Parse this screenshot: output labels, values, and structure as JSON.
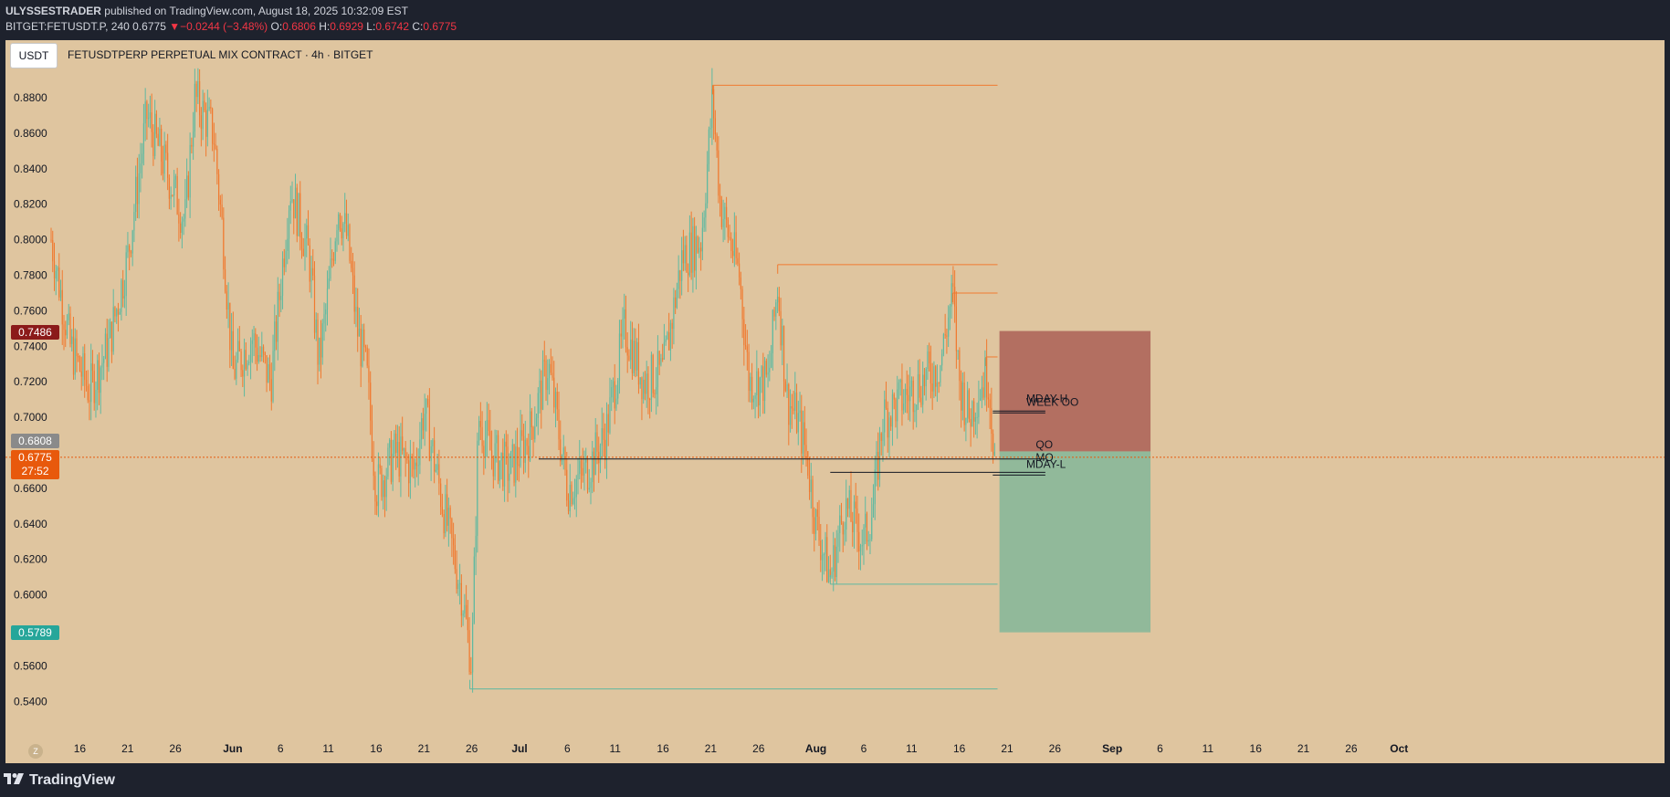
{
  "header": {
    "author": "ULYSSESTRADER",
    "published": "published on TradingView.com, August 18, 2025 10:32:09 EST",
    "symbol": "BITGET:FETUSDT.P, 240",
    "last": "0.6775",
    "change_arrow": "▼",
    "change": "−0.0244 (−3.48%)",
    "o_label": "O:",
    "o": "0.6806",
    "h_label": "H:",
    "h": "0.6929",
    "l_label": "L:",
    "l": "0.6742",
    "c_label": "C:",
    "c": "0.6775"
  },
  "chart_header": {
    "currency_button": "USDT",
    "title": "FETUSDTPERP PERPETUAL MIX CONTRACT · 4h · BITGET"
  },
  "badges": {
    "stop": "0.7486",
    "prev": "0.6808",
    "current_price": "0.6775",
    "countdown": "27:52",
    "target": "0.5789"
  },
  "footer": {
    "logo_text": "TradingView",
    "zoom_label": "Z"
  },
  "colors": {
    "background": "#dfc59f",
    "frame": "#1e222d",
    "up_candle": "#5fb9a0",
    "down_candle": "#f07a30",
    "stop_zone": "#b06a5e",
    "target_zone": "#8cb89a",
    "stop_badge": "#8b1a1a",
    "current_badge": "#e8590c",
    "prev_badge": "#8a8a8a",
    "target_badge": "#26a69a"
  },
  "chart_data": {
    "type": "candlestick",
    "title": "FETUSDTPERP PERPETUAL MIX CONTRACT · 4h · BITGET",
    "timeframe": "4h",
    "x_range": [
      "2025-05-13",
      "2025-10-01"
    ],
    "y_range": [
      0.52,
      0.9
    ],
    "y_ticks": [
      "0.8800",
      "0.8600",
      "0.8400",
      "0.8200",
      "0.8000",
      "0.7800",
      "0.7600",
      "0.7400",
      "0.7200",
      "0.7000",
      "0.6600",
      "0.6400",
      "0.6200",
      "0.6000",
      "0.5600",
      "0.5400"
    ],
    "x_ticks": [
      {
        "label": "16",
        "day": 3
      },
      {
        "label": "21",
        "day": 8
      },
      {
        "label": "26",
        "day": 13
      },
      {
        "label": "Jun",
        "day": 19,
        "bold": true
      },
      {
        "label": "6",
        "day": 24
      },
      {
        "label": "11",
        "day": 29
      },
      {
        "label": "16",
        "day": 34
      },
      {
        "label": "21",
        "day": 39
      },
      {
        "label": "26",
        "day": 44
      },
      {
        "label": "Jul",
        "day": 49,
        "bold": true
      },
      {
        "label": "6",
        "day": 54
      },
      {
        "label": "11",
        "day": 59
      },
      {
        "label": "16",
        "day": 64
      },
      {
        "label": "21",
        "day": 69
      },
      {
        "label": "26",
        "day": 74
      },
      {
        "label": "Aug",
        "day": 80,
        "bold": true
      },
      {
        "label": "6",
        "day": 85
      },
      {
        "label": "11",
        "day": 90
      },
      {
        "label": "16",
        "day": 95
      },
      {
        "label": "21",
        "day": 100
      },
      {
        "label": "26",
        "day": 105
      },
      {
        "label": "Sep",
        "day": 111,
        "bold": true
      },
      {
        "label": "6",
        "day": 116
      },
      {
        "label": "11",
        "day": 121
      },
      {
        "label": "16",
        "day": 126
      },
      {
        "label": "21",
        "day": 131
      },
      {
        "label": "26",
        "day": 136
      },
      {
        "label": "Oct",
        "day": 141,
        "bold": true
      }
    ],
    "price_path": [
      [
        0,
        0.8
      ],
      [
        2,
        0.74
      ],
      [
        4,
        0.715
      ],
      [
        6,
        0.74
      ],
      [
        8,
        0.79
      ],
      [
        10,
        0.87
      ],
      [
        12,
        0.84
      ],
      [
        14,
        0.81
      ],
      [
        15,
        0.88
      ],
      [
        17,
        0.86
      ],
      [
        18,
        0.8
      ],
      [
        19,
        0.725
      ],
      [
        21,
        0.745
      ],
      [
        23,
        0.72
      ],
      [
        25,
        0.83
      ],
      [
        27,
        0.79
      ],
      [
        28,
        0.73
      ],
      [
        29,
        0.77
      ],
      [
        30,
        0.82
      ],
      [
        31,
        0.8
      ],
      [
        32,
        0.75
      ],
      [
        33,
        0.725
      ],
      [
        34,
        0.66
      ],
      [
        36,
        0.68
      ],
      [
        38,
        0.67
      ],
      [
        39,
        0.705
      ],
      [
        41,
        0.65
      ],
      [
        43,
        0.6
      ],
      [
        44,
        0.56
      ],
      [
        44.7,
        0.7
      ],
      [
        46,
        0.68
      ],
      [
        48,
        0.67
      ],
      [
        50,
        0.69
      ],
      [
        52,
        0.73
      ],
      [
        54,
        0.66
      ],
      [
        56,
        0.67
      ],
      [
        58,
        0.69
      ],
      [
        60,
        0.75
      ],
      [
        62,
        0.72
      ],
      [
        64,
        0.725
      ],
      [
        66,
        0.79
      ],
      [
        68,
        0.8
      ],
      [
        69.2,
        0.88
      ],
      [
        70,
        0.82
      ],
      [
        72,
        0.78
      ],
      [
        73,
        0.72
      ],
      [
        75,
        0.72
      ],
      [
        76,
        0.775
      ],
      [
        77,
        0.71
      ],
      [
        78,
        0.7
      ],
      [
        79,
        0.68
      ],
      [
        80,
        0.64
      ],
      [
        81.5,
        0.61
      ],
      [
        83,
        0.65
      ],
      [
        84,
        0.64
      ],
      [
        85,
        0.63
      ],
      [
        86,
        0.65
      ],
      [
        87,
        0.7
      ],
      [
        89,
        0.71
      ],
      [
        91,
        0.72
      ],
      [
        93,
        0.73
      ],
      [
        94.3,
        0.77
      ],
      [
        95,
        0.72
      ],
      [
        96,
        0.7
      ],
      [
        97,
        0.715
      ],
      [
        98,
        0.725
      ],
      [
        98.7,
        0.6775
      ]
    ],
    "candle_step_days": 0.167,
    "horizontal_lines": [
      {
        "from_day": 69.2,
        "to_day": 99,
        "price": 0.887,
        "color": "orange"
      },
      {
        "from_day": 76,
        "to_day": 99,
        "price": 0.786,
        "color": "orange"
      },
      {
        "from_day": 94.3,
        "to_day": 99,
        "price": 0.77,
        "color": "orange"
      },
      {
        "from_day": 97.8,
        "to_day": 99,
        "price": 0.734,
        "color": "orange"
      },
      {
        "from_day": 81.5,
        "to_day": 99,
        "price": 0.606,
        "color": "teal"
      },
      {
        "from_day": 43.8,
        "to_day": 99,
        "price": 0.547,
        "color": "teal"
      },
      {
        "from_day": 51,
        "to_day": 104,
        "price": 0.6765,
        "color": "black"
      },
      {
        "from_day": 81.5,
        "to_day": 104,
        "price": 0.669,
        "color": "black"
      },
      {
        "from_day": 98.5,
        "to_day": 104,
        "price": 0.7025,
        "color": "black"
      },
      {
        "from_day": 98.5,
        "to_day": 104,
        "price": 0.7035,
        "color": "black"
      },
      {
        "from_day": 98.5,
        "to_day": 104,
        "price": 0.6675,
        "color": "black"
      }
    ],
    "level_labels": [
      {
        "label": "MDAY-H",
        "day": 102,
        "price": 0.7085
      },
      {
        "label": "WEEK OO",
        "day": 102,
        "price": 0.7065
      },
      {
        "label": "QO",
        "day": 103,
        "price": 0.6825
      },
      {
        "label": "MO",
        "day": 103,
        "price": 0.6755
      },
      {
        "label": "MDAY-L",
        "day": 102,
        "price": 0.6715
      }
    ],
    "position": {
      "type": "short",
      "start_day": 99.2,
      "end_day": 115,
      "entry": 0.6808,
      "stop": 0.7486,
      "target": 0.5789
    },
    "current_price": 0.6775
  }
}
